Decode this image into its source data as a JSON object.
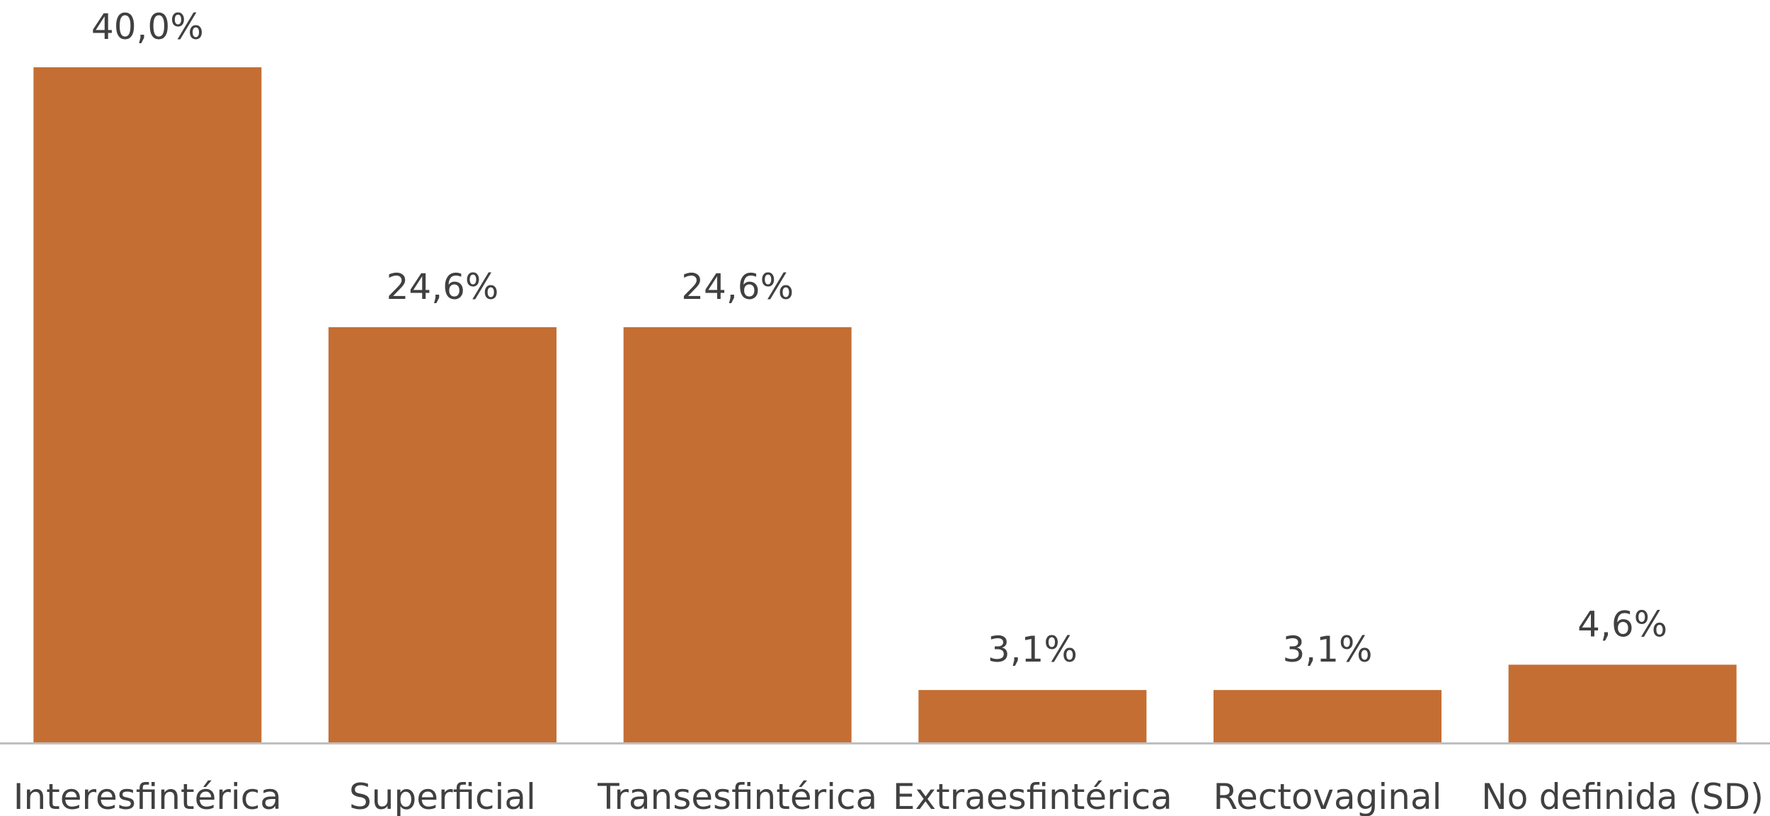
{
  "chart_data": {
    "type": "bar",
    "categories": [
      "Interesfintérica",
      "Superficial",
      "Transesfintérica",
      "Extraesfintérica",
      "Rectovaginal",
      "No definida (SD)"
    ],
    "values": [
      40.0,
      24.6,
      24.6,
      3.1,
      3.1,
      4.6
    ],
    "data_labels": [
      "40,0%",
      "24,6%",
      "24,6%",
      "3,1%",
      "3,1%",
      "4,6%"
    ],
    "title": "",
    "xlabel": "",
    "ylabel": "",
    "ylim": [
      0,
      40
    ],
    "grid": false,
    "legend": "none",
    "bar_color": "#C46E33",
    "axis_color": "#BFBFBF",
    "label_color": "#404040"
  }
}
